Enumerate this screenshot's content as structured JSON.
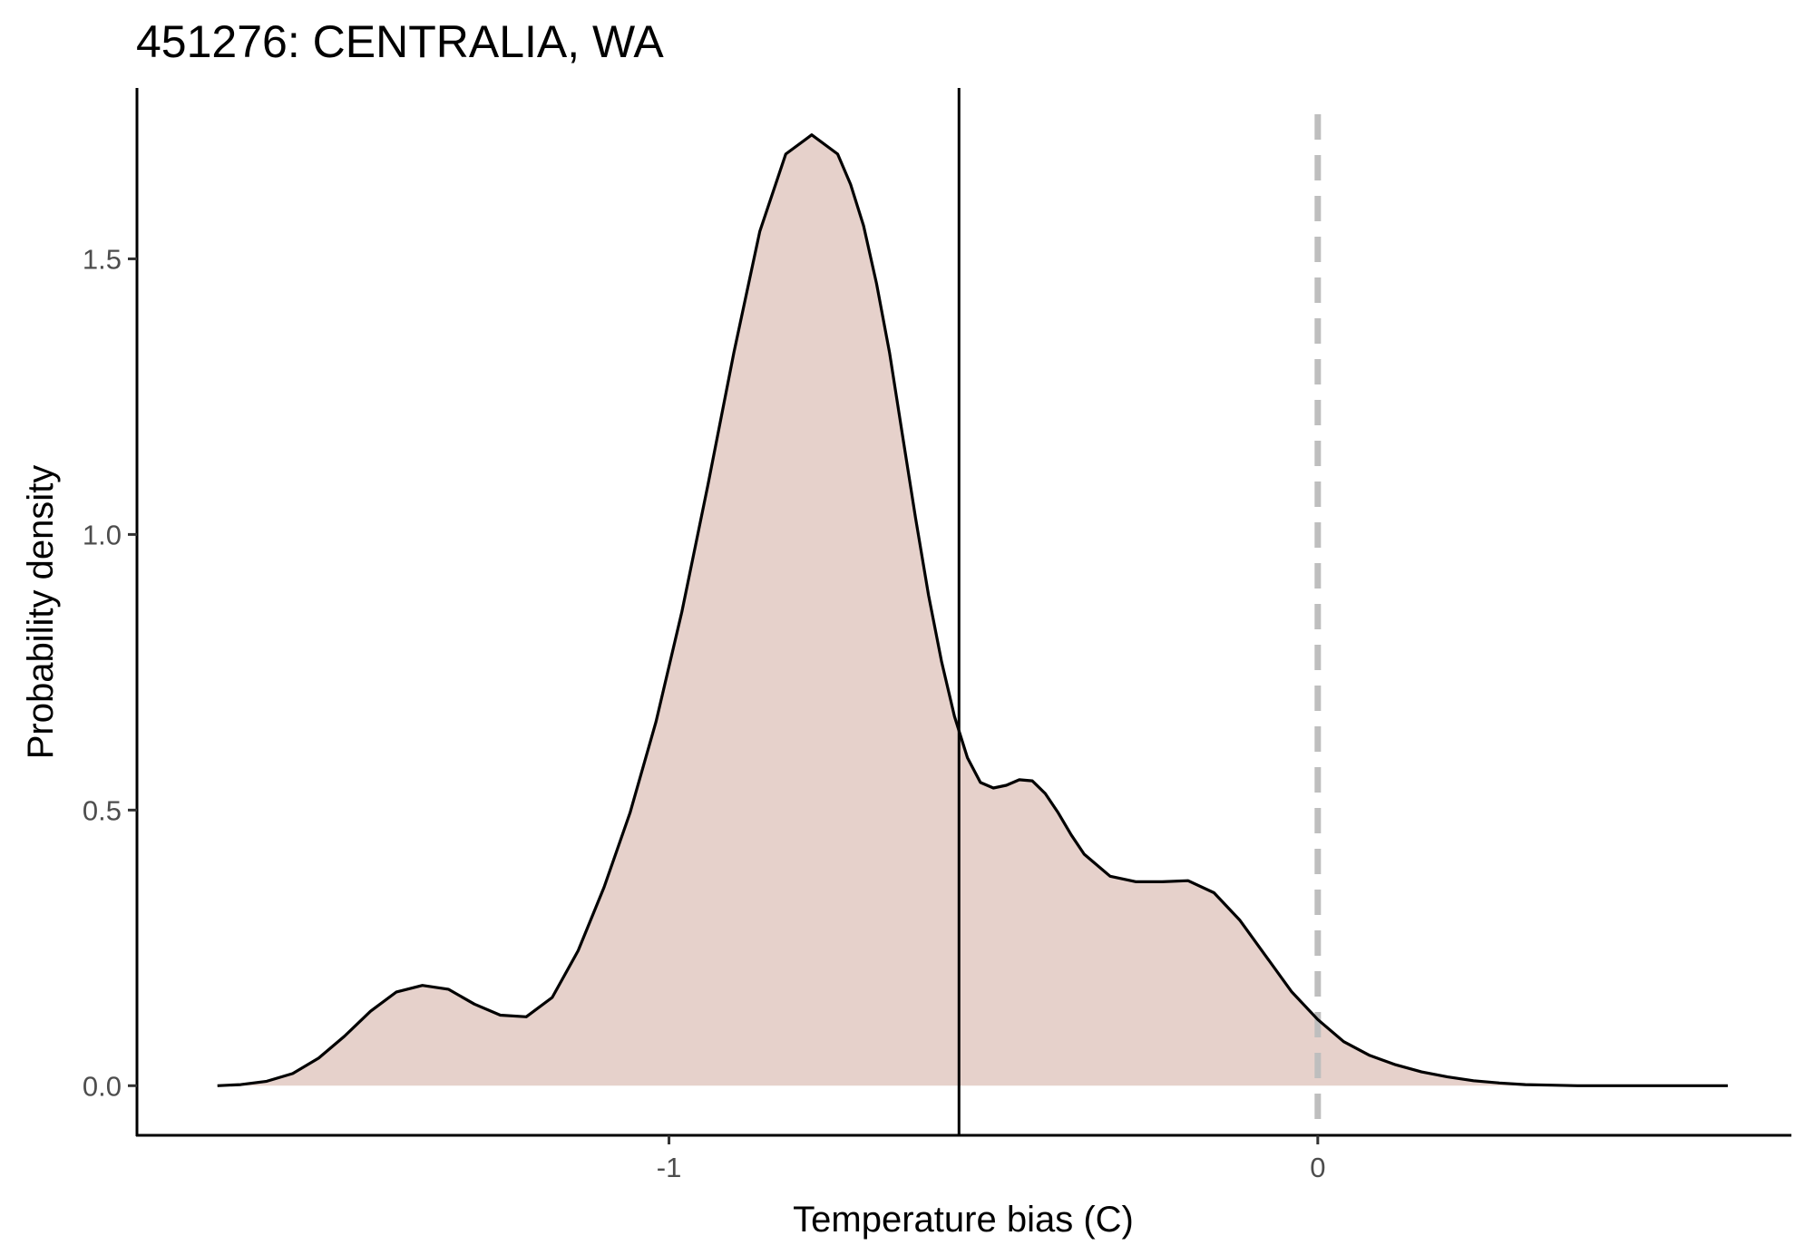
{
  "chart_data": {
    "type": "area",
    "title": "451276: CENTRALIA, WA",
    "xlabel": "Temperature bias (C)",
    "ylabel": "Probability density",
    "xlim": [
      -1.82,
      0.73
    ],
    "ylim": [
      -0.09,
      1.81
    ],
    "x_ticks": [
      -1,
      0
    ],
    "x_tick_labels": [
      "-1",
      "0"
    ],
    "y_ticks": [
      0.0,
      0.5,
      1.0,
      1.5
    ],
    "y_tick_labels": [
      "0.0",
      "0.5",
      "1.0",
      "1.5"
    ],
    "grid": false,
    "legend": "none",
    "fill_color": "#e6d1cb",
    "line_color": "#000000",
    "vline_solid_x": -0.553,
    "vline_dashed_x": 0.0,
    "vline_dashed_color": "#bebebe",
    "density": {
      "x": [
        -1.696,
        -1.66,
        -1.62,
        -1.58,
        -1.54,
        -1.5,
        -1.46,
        -1.42,
        -1.38,
        -1.34,
        -1.3,
        -1.26,
        -1.22,
        -1.18,
        -1.14,
        -1.1,
        -1.06,
        -1.02,
        -0.98,
        -0.94,
        -0.9,
        -0.86,
        -0.82,
        -0.78,
        -0.74,
        -0.72,
        -0.7,
        -0.68,
        -0.66,
        -0.64,
        -0.62,
        -0.6,
        -0.58,
        -0.56,
        -0.54,
        -0.52,
        -0.5,
        -0.48,
        -0.46,
        -0.44,
        -0.42,
        -0.4,
        -0.38,
        -0.36,
        -0.32,
        -0.28,
        -0.24,
        -0.2,
        -0.16,
        -0.12,
        -0.08,
        -0.04,
        0.0,
        0.04,
        0.08,
        0.12,
        0.16,
        0.2,
        0.24,
        0.28,
        0.32,
        0.36,
        0.4,
        0.44,
        0.48,
        0.52,
        0.56,
        0.6,
        0.632
      ],
      "y": [
        0.0,
        0.002,
        0.008,
        0.022,
        0.05,
        0.09,
        0.135,
        0.17,
        0.182,
        0.175,
        0.148,
        0.128,
        0.125,
        0.16,
        0.245,
        0.36,
        0.495,
        0.66,
        0.86,
        1.09,
        1.33,
        1.55,
        1.69,
        1.725,
        1.69,
        1.635,
        1.56,
        1.455,
        1.33,
        1.18,
        1.03,
        0.89,
        0.77,
        0.67,
        0.595,
        0.55,
        0.54,
        0.545,
        0.555,
        0.553,
        0.53,
        0.495,
        0.455,
        0.42,
        0.38,
        0.37,
        0.37,
        0.372,
        0.35,
        0.3,
        0.235,
        0.17,
        0.12,
        0.08,
        0.055,
        0.038,
        0.025,
        0.016,
        0.009,
        0.005,
        0.002,
        0.001,
        0.0,
        0.0,
        0.0,
        0.0,
        0.0,
        0.0,
        0.0
      ]
    }
  }
}
